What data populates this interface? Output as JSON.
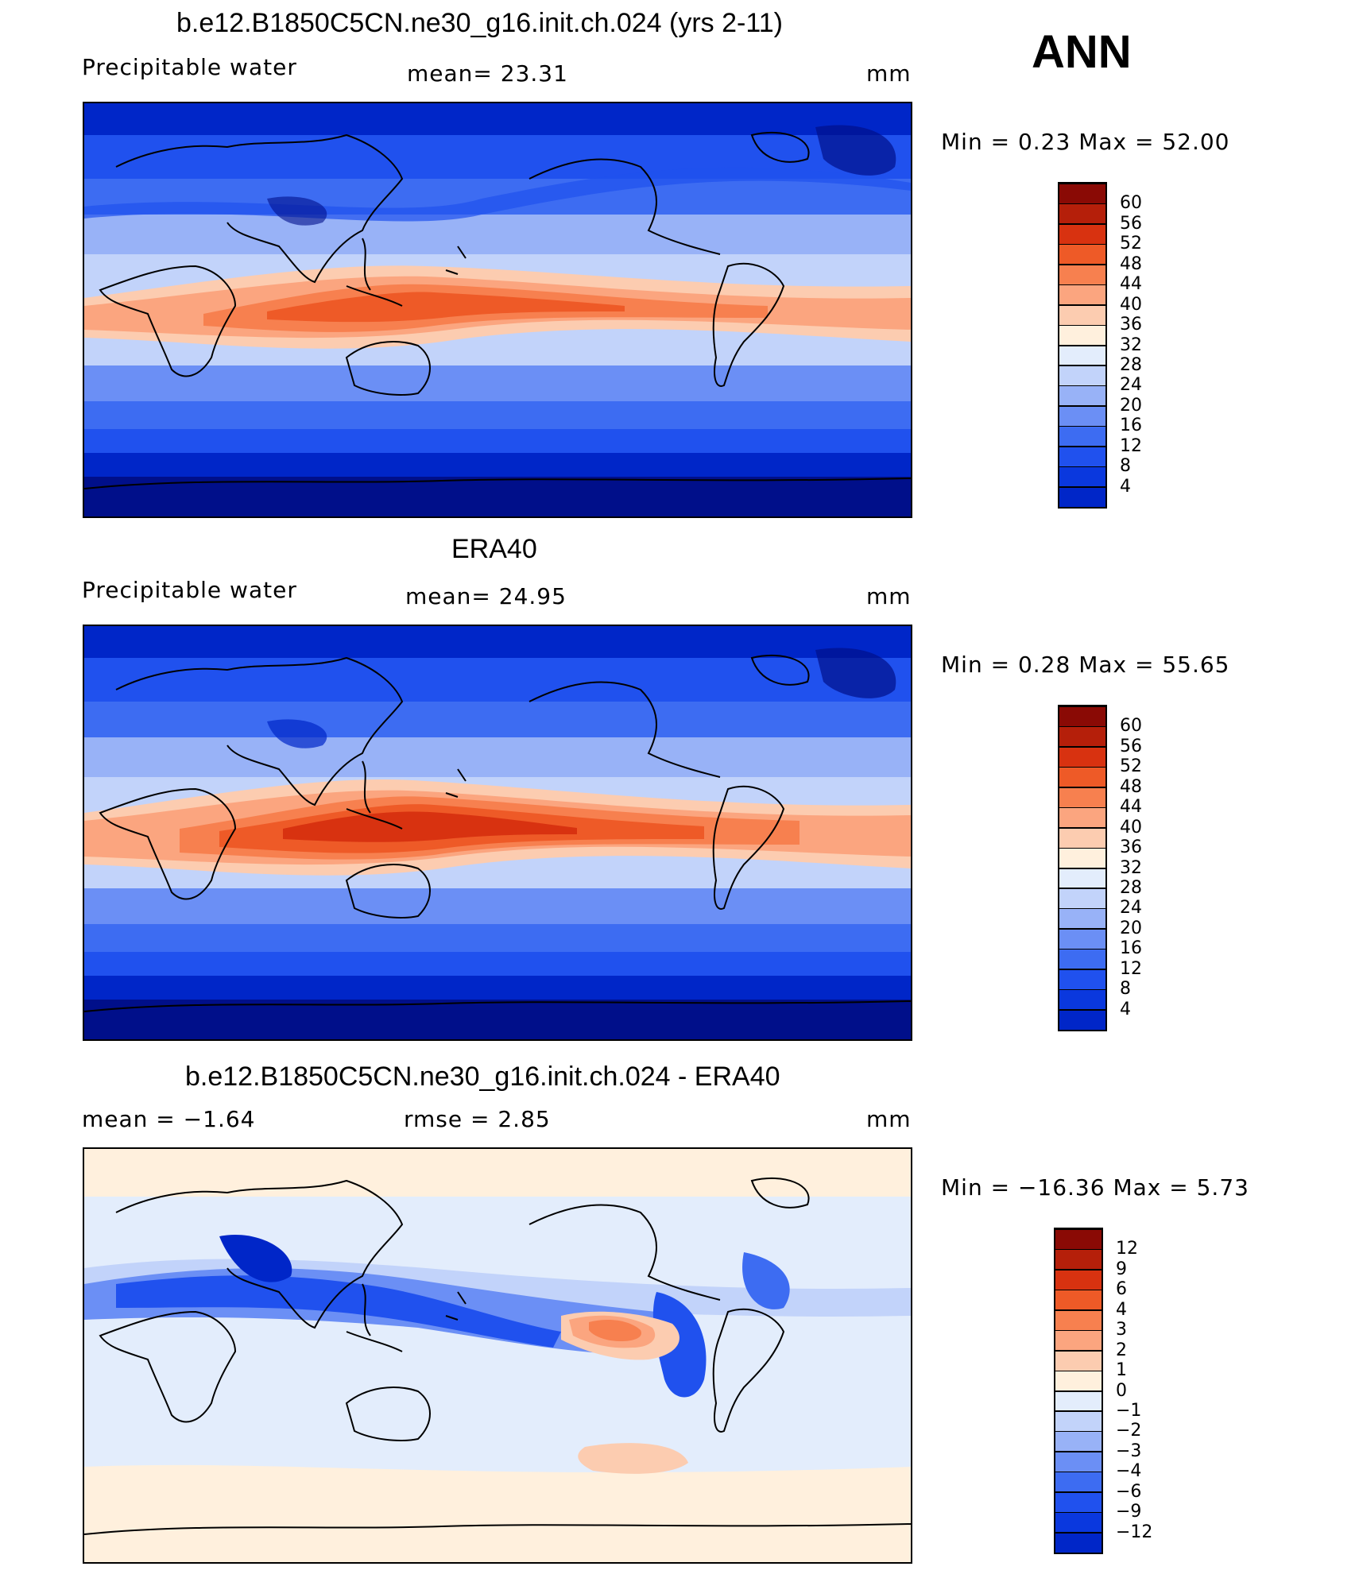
{
  "season": "ANN",
  "colors": {
    "field": [
      "#000f8a",
      "#0026c8",
      "#0a38de",
      "#2051ee",
      "#3d6cf2",
      "#6b8ff5",
      "#98b2f7",
      "#c2d3fa",
      "#e3edfc",
      "#fff0dd",
      "#fcccb0",
      "#fba57f",
      "#f7804f",
      "#ee5a27",
      "#d83210",
      "#b51f0a",
      "#8a0a05"
    ],
    "diff": [
      "#000f8a",
      "#0026c8",
      "#0a38de",
      "#2051ee",
      "#3d6cf2",
      "#6b8ff5",
      "#98b2f7",
      "#c2d3fa",
      "#e3edfc",
      "#fff0dd",
      "#fcccb0",
      "#fba57f",
      "#f7804f",
      "#ee5a27",
      "#d83210",
      "#b51f0a",
      "#8a0a05"
    ]
  },
  "panels": [
    {
      "id": "model",
      "title": "b.e12.B1850C5CN.ne30_g16.init.ch.024 (yrs 2-11)",
      "left_label": "Precipitable  water",
      "center_label": "mean=   23.31",
      "units": "mm",
      "range_text": "Min  =     0.23  Max  =    52.00",
      "colorbar_ticks": [
        "60",
        "56",
        "52",
        "48",
        "44",
        "40",
        "36",
        "32",
        "28",
        "24",
        "20",
        "16",
        "12",
        "8",
        "4"
      ],
      "colorbar_type": "field"
    },
    {
      "id": "obs",
      "title": "ERA40",
      "left_label": "Precipitable  water",
      "center_label": "mean=   24.95",
      "units": "mm",
      "range_text": "Min  =     0.28  Max  =    55.65",
      "colorbar_ticks": [
        "60",
        "56",
        "52",
        "48",
        "44",
        "40",
        "36",
        "32",
        "28",
        "24",
        "20",
        "16",
        "12",
        "8",
        "4"
      ],
      "colorbar_type": "field"
    },
    {
      "id": "diff",
      "title": "b.e12.B1850C5CN.ne30_g16.init.ch.024 - ERA40",
      "left_label": "mean  =    −1.64",
      "center_label": "rmse  =     2.85",
      "units": "mm",
      "range_text": "Min  =  −16.36  Max  =      5.73",
      "colorbar_ticks": [
        "12",
        "9",
        "6",
        "4",
        "3",
        "2",
        "1",
        "0",
        "−1",
        "−2",
        "−3",
        "−4",
        "−6",
        "−9",
        "−12"
      ],
      "colorbar_type": "diff"
    }
  ]
}
